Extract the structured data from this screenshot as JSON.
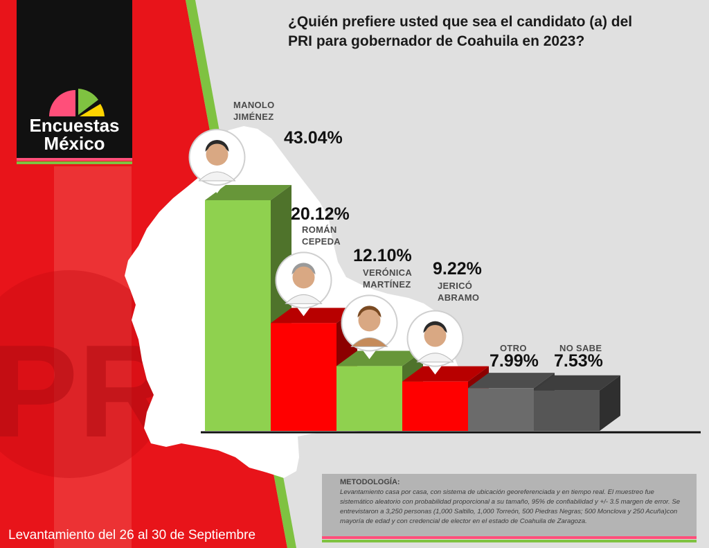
{
  "title_line1": "¿Quién prefiere usted que sea el candidato (a) del",
  "title_line2": "PRI para gobernador de Coahuila en 2023?",
  "logo": {
    "line1": "Encuestas",
    "line2": "México"
  },
  "watermark": "PRI",
  "chart_data": {
    "type": "bar",
    "title": "¿Quién prefiere usted que sea el candidato (a) del PRI para gobernador de Coahuila en 2023?",
    "categories": [
      "MANOLO JIMÉNEZ",
      "ROMÁN CEPEDA",
      "VERÓNICA MARTÍNEZ",
      "JERICÓ ABRAMO",
      "OTRO",
      "NO SABE"
    ],
    "values": [
      43.04,
      20.12,
      12.1,
      9.22,
      7.99,
      7.53
    ],
    "labels": [
      "43.04%",
      "20.12%",
      "12.10%",
      "9.22%",
      "7.99%",
      "7.53%"
    ],
    "bar_colors": [
      "#8fd14f",
      "#ff0000",
      "#8fd14f",
      "#ff0000",
      "#6b6b6b",
      "#565656"
    ],
    "ylim": [
      0,
      43.04
    ]
  },
  "candidates": [
    {
      "name1": "MANOLO",
      "name2": "JIMÉNEZ",
      "pct": "43.04%"
    },
    {
      "name1": "ROMÁN",
      "name2": "CEPEDA",
      "pct": "20.12%"
    },
    {
      "name1": "VERÓNICA",
      "name2": "MARTÍNEZ",
      "pct": "12.10%"
    },
    {
      "name1": "JERICÓ",
      "name2": "ABRAMO",
      "pct": "9.22%"
    },
    {
      "name1": "OTRO",
      "name2": "",
      "pct": "7.99%"
    },
    {
      "name1": "NO SABE",
      "name2": "",
      "pct": "7.53%"
    }
  ],
  "methodology": {
    "title": "METODOLOGÍA:",
    "text": "Levantamiento casa por casa, con sistema de ubicación georeferenciada y en tiempo real. El muestreo fue sistemático aleatorio con probabilidad proporcional a su tamaño, 95% de confiabilidad y +/- 3.5 margen de error. Se entrevistaron a 3,250 personas  (1,000 Saltillo, 1,000 Torreón, 500 Piedras Negras; 500 Monclova y 250 Acuña)con mayoría de edad y con credencial de elector en el estado de Coahuila de Zaragoza."
  },
  "footer_date": "Levantamiento del 26 al 30 de Septiembre",
  "colors": {
    "red": "#ff0000",
    "green": "#8fd14f",
    "dark_green": "#5fa02e",
    "black": "#111111",
    "gray_bg": "#e0e0e0",
    "pink": "#ff4f7a",
    "yellow": "#ffd400"
  }
}
